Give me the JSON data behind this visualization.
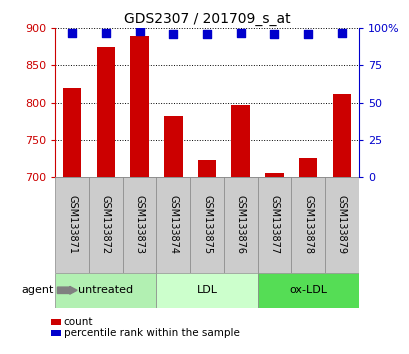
{
  "title": "GDS2307 / 201709_s_at",
  "categories": [
    "GSM133871",
    "GSM133872",
    "GSM133873",
    "GSM133874",
    "GSM133875",
    "GSM133876",
    "GSM133877",
    "GSM133878",
    "GSM133879"
  ],
  "counts": [
    820,
    875,
    890,
    782,
    723,
    797,
    705,
    725,
    812
  ],
  "percentiles": [
    97,
    97,
    98,
    96,
    96,
    97,
    96,
    96,
    97
  ],
  "bar_color": "#cc0000",
  "dot_color": "#0000cc",
  "ylim_left": [
    700,
    900
  ],
  "ylim_right": [
    0,
    100
  ],
  "yticks_left": [
    700,
    750,
    800,
    850,
    900
  ],
  "yticks_right": [
    0,
    25,
    50,
    75,
    100
  ],
  "yticklabels_right": [
    "0",
    "25",
    "50",
    "75",
    "100%"
  ],
  "groups": [
    {
      "label": "untreated",
      "indices": [
        0,
        1,
        2
      ],
      "color": "#b2f0b2"
    },
    {
      "label": "LDL",
      "indices": [
        3,
        4,
        5
      ],
      "color": "#ccffcc"
    },
    {
      "label": "ox-LDL",
      "indices": [
        6,
        7,
        8
      ],
      "color": "#55dd55"
    }
  ],
  "agent_label": "agent",
  "legend_count_label": "count",
  "legend_pct_label": "percentile rank within the sample",
  "plot_bg": "#ffffff",
  "tick_color_left": "#cc0000",
  "tick_color_right": "#0000cc",
  "sample_bg": "#cccccc",
  "bar_width": 0.55,
  "title_fontsize": 10,
  "label_fontsize": 7,
  "axis_fontsize": 8
}
